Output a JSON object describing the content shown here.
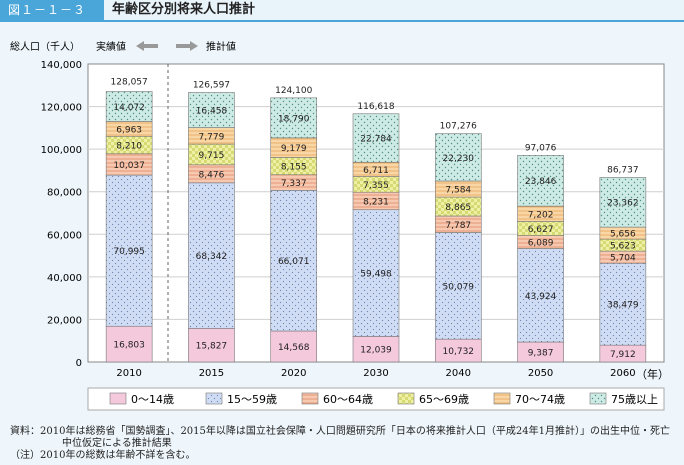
{
  "header": {
    "figure_label": "図１－１－３",
    "title": "年齢区分別将来人口推計"
  },
  "annotations": {
    "y_axis_label": "総人口（千人）",
    "actual_label": "実績値",
    "projection_label": "推計値",
    "year_unit": "（年）"
  },
  "colors": {
    "0-14": "#f4c9dc",
    "15-59": "#cfdcf4",
    "60-64": "#f7c9b0",
    "65-69": "#eef0a6",
    "70-74": "#f9d6a6",
    "75+": "#cdebe4"
  },
  "chart_data": {
    "type": "bar",
    "stacked": true,
    "categories": [
      "2010",
      "2015",
      "2020",
      "2030",
      "2040",
      "2050",
      "2060"
    ],
    "series": [
      {
        "name": "0～14歳",
        "key": "0-14",
        "values": [
          16803,
          15827,
          14568,
          12039,
          10732,
          9387,
          7912
        ]
      },
      {
        "name": "15～59歳",
        "key": "15-59",
        "values": [
          70995,
          68342,
          66071,
          59498,
          50079,
          43924,
          38479
        ]
      },
      {
        "name": "60～64歳",
        "key": "60-64",
        "values": [
          10037,
          8476,
          7337,
          8231,
          7787,
          6089,
          5704
        ]
      },
      {
        "name": "65～69歳",
        "key": "65-69",
        "values": [
          8210,
          9715,
          8155,
          7355,
          8865,
          6627,
          5623
        ]
      },
      {
        "name": "70～74歳",
        "key": "70-74",
        "values": [
          6963,
          7779,
          9179,
          6711,
          7584,
          7202,
          5656
        ]
      },
      {
        "name": "75歳以上",
        "key": "75+",
        "values": [
          14072,
          16458,
          18790,
          22784,
          22230,
          23846,
          23362
        ]
      }
    ],
    "totals": [
      128057,
      126597,
      124100,
      116618,
      107276,
      97076,
      86737
    ],
    "ylim": [
      0,
      140000
    ],
    "yticks": [
      0,
      20000,
      40000,
      60000,
      80000,
      100000,
      120000,
      140000
    ],
    "ytick_labels": [
      "0",
      "20,000",
      "40,000",
      "60,000",
      "80,000",
      "100,000",
      "120,000",
      "140,000"
    ],
    "ylabel": "総人口（千人）",
    "xlabel": "（年）",
    "grid": true,
    "legend_position": "bottom"
  },
  "notes": [
    "資料：2010年は総務省「国勢調査」、2015年以降は国立社会保障・人口問題研究所「日本の将来推計人口（平成24年1月推計）」の出生中位・死亡",
    "中位仮定による推計結果",
    "（注）2010年の総数は年齢不詳を含む。"
  ]
}
